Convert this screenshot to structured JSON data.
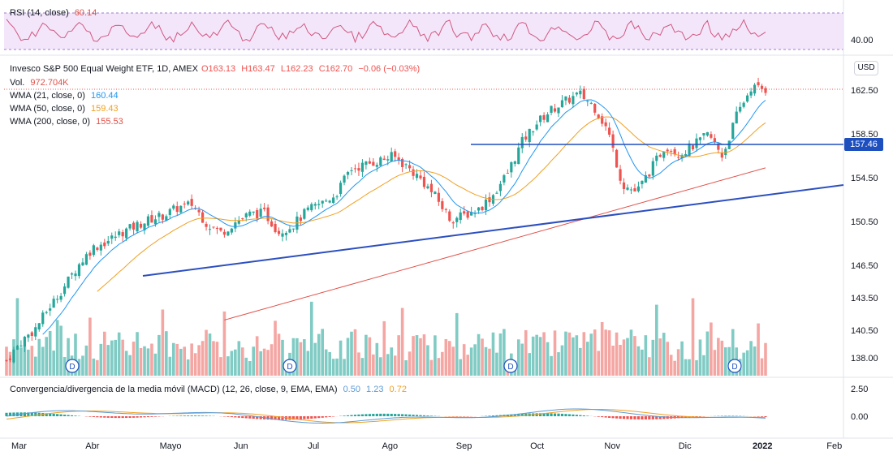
{
  "rsi": {
    "label": "RSI (14, close)",
    "value": "60.14",
    "axis_tick": "40.00"
  },
  "main": {
    "title": "Invesco S&P 500 Equal Weight ETF, 1D, AMEX",
    "open": "O163.13",
    "high": "H163.47",
    "low": "L162.23",
    "close": "C162.70",
    "change": "−0.06 (−0.03%)",
    "vol_label": "Vol.",
    "vol_value": "972.704K",
    "wma21_label": "WMA (21, close, 0)",
    "wma21_value": "160.44",
    "wma50_label": "WMA (50, close, 0)",
    "wma50_value": "159.43",
    "wma200_label": "WMA (200, close, 0)",
    "wma200_value": "155.53",
    "currency": "USD",
    "hline_value": "157.46"
  },
  "macd": {
    "label": "Convergencia/divergencia de la media móvil (MACD) (12, 26, close, 9, EMA, EMA)",
    "hist": "0.50",
    "macd": "1.23",
    "signal": "0.72"
  },
  "colors": {
    "up": "#26a69a",
    "down": "#ef5350",
    "vol_up": "#80cbc4",
    "vol_down": "#f4a6a3",
    "wma21": "#2196f3",
    "wma50": "#f0a020",
    "wma200": "#e0524a",
    "trend": "#2c4fbf",
    "rsi_line": "#d2577e",
    "rsi_fill": "#f3e6fb",
    "hline": "#1e4fbf"
  },
  "chart_data": {
    "type": "candlestick",
    "price_axis_ticks": [
      "162.50",
      "158.50",
      "154.50",
      "150.50",
      "146.50",
      "143.50",
      "140.50",
      "138.00"
    ],
    "macd_axis_ticks": [
      "2.50",
      "0.00"
    ],
    "x_labels": [
      "Mar",
      "Abr",
      "Mayo",
      "Jun",
      "Jul",
      "Ago",
      "Sep",
      "Oct",
      "Nov",
      "Dic",
      "2022",
      "Feb"
    ],
    "dividend_markers": [
      "D",
      "D",
      "D",
      "D"
    ],
    "close_series": [
      137.9,
      139.6,
      140.8,
      142.8,
      144.6,
      146.6,
      148.2,
      148.8,
      149.6,
      150.2,
      150.8,
      151.2,
      151.9,
      152.2,
      150.4,
      149.6,
      150.6,
      151.3,
      151.4,
      149.7,
      150.3,
      151.6,
      152.3,
      153.1,
      155.4,
      155.8,
      156.2,
      156.6,
      155.6,
      154.4,
      152.8,
      150.8,
      151.2,
      151.8,
      153.1,
      155.1,
      157.9,
      159.6,
      160.8,
      161.6,
      162.3,
      161.2,
      158.9,
      154.0,
      153.3,
      155.4,
      157.6,
      156.8,
      157.6,
      158.6,
      156.6,
      160.4,
      162.9,
      162.7
    ],
    "wma21": 160.44,
    "wma50": 159.43,
    "wma200": 155.53,
    "horizontal_level": 157.46,
    "last_price": 162.7,
    "rsi_last": 60.14
  }
}
